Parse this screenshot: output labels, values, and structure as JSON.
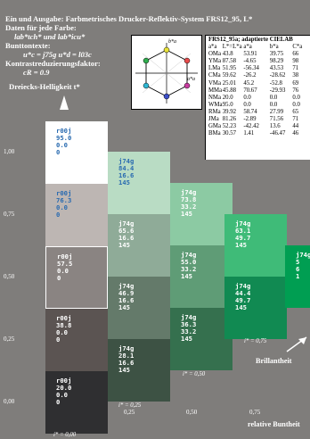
{
  "header": {
    "title_line": "Ein und Ausgabe: Farbmetrisches Drucker-Reflektiv-System FRS12_95, L*",
    "line2": "Daten für jede Farbe:",
    "line3": "lab*tch* und lab*icu*",
    "line4": "Bunttontexte:",
    "line5": "u*c = j75g    u*d = l03c",
    "line6": "Kontrastreduzierungsfaktor:",
    "line7": "cR = 0.9",
    "line8": "Dreiecks-Helligkeit t*"
  },
  "hexagon": {
    "labels": [
      "b*a",
      "a*a"
    ]
  },
  "table": {
    "title": "FRS12_95a; adaptierte CIELAB",
    "head": [
      "a*a",
      "L*=L*a",
      "a*a",
      "b*a",
      "C*a"
    ],
    "rows": [
      [
        "OMa",
        "43.8",
        "53.91",
        "39.75",
        "66"
      ],
      [
        "YMa",
        "87.58",
        "-4.65",
        "98.29",
        "98"
      ],
      [
        "LMa",
        "51.95",
        "-56.34",
        "43.53",
        "71"
      ],
      [
        "CMa",
        "59.62",
        "-26.2",
        "-28.62",
        "38"
      ],
      [
        "VMa",
        "25.01",
        "45.2",
        "-52.8",
        "69"
      ],
      [
        "MMa",
        "45.88",
        "70.67",
        "-29.93",
        "76"
      ],
      [
        "NMa",
        "20.0",
        "0.0",
        "0.0",
        "0.0"
      ],
      [
        "WMa",
        "95.0",
        "0.0",
        "0.0",
        "0.0"
      ],
      [
        "RMa",
        "39.92",
        "58.74",
        "27.99",
        "65"
      ],
      [
        "JMa",
        "81.26",
        "-2.89",
        "71.56",
        "71"
      ],
      [
        "GMa",
        "52.23",
        "-42.42",
        "13.6",
        "44"
      ],
      [
        "BMa",
        "30.57",
        "1.41",
        "-46.47",
        "46"
      ]
    ]
  },
  "y_axis": [
    "1,00",
    "0,75",
    "0,50",
    "0,25",
    "0,00"
  ],
  "x_axis": [
    "0,25",
    "0,50",
    "0,75"
  ],
  "x_axis_title": "relative Buntheit",
  "brightness_title": "Brillantheit",
  "i_labels": [
    "i* = 0,00",
    "i* = 0,25",
    "i* = 0,50",
    "i* = 0,75"
  ],
  "columns": [
    {
      "squares": [
        {
          "text": "r00j\n95.0\n0.0\n0",
          "color": "#ffffff",
          "fg": "#2a6bb0"
        },
        {
          "text": "r00j\n76.3\n0.0\n0",
          "color": "#bdb6b3",
          "fg": "#2a6bb0"
        },
        {
          "text": "r00j\n57.5\n0.0\n0",
          "color": "#8a8482",
          "fg": "#ffffff",
          "outlined": true
        },
        {
          "text": "r00j\n38.8\n0.0\n0",
          "color": "#5b5452",
          "fg": "#ffffff"
        },
        {
          "text": "r00j\n20.0\n0.0\n0",
          "color": "#2f2f31",
          "fg": "#ffffff"
        }
      ]
    },
    {
      "squares": [
        {
          "text": "j74g\n84.4\n16.6\n145",
          "color": "#b9dcc4",
          "fg": "#2a6bb0"
        },
        {
          "text": "j74g\n65.6\n16.6\n145",
          "color": "#8fab98",
          "fg": "#ffffff"
        },
        {
          "text": "j74g\n46.9\n16.6\n145",
          "color": "#647a6a",
          "fg": "#ffffff"
        },
        {
          "text": "j74g\n28.1\n16.6\n145",
          "color": "#3d5244",
          "fg": "#ffffff"
        }
      ]
    },
    {
      "squares": [
        {
          "text": "j74g\n73.8\n33.2\n145",
          "color": "#8ccaa3",
          "fg": "#ffffff"
        },
        {
          "text": "j74g\n55.0\n33.2\n145",
          "color": "#5f9c76",
          "fg": "#ffffff"
        },
        {
          "text": "j74g\n36.3\n33.2\n145",
          "color": "#35704e",
          "fg": "#ffffff"
        }
      ]
    },
    {
      "squares": [
        {
          "text": "j74g\n63.1\n49.7\n145",
          "color": "#3fbb78",
          "fg": "#ffffff"
        },
        {
          "text": "j74g\n44.4\n49.7\n145",
          "color": "#118a52",
          "fg": "#ffffff"
        }
      ]
    },
    {
      "squares": [
        {
          "text": "j74g\n5\n6\n1",
          "color": "#009e52",
          "fg": "#ffffff"
        }
      ]
    }
  ]
}
